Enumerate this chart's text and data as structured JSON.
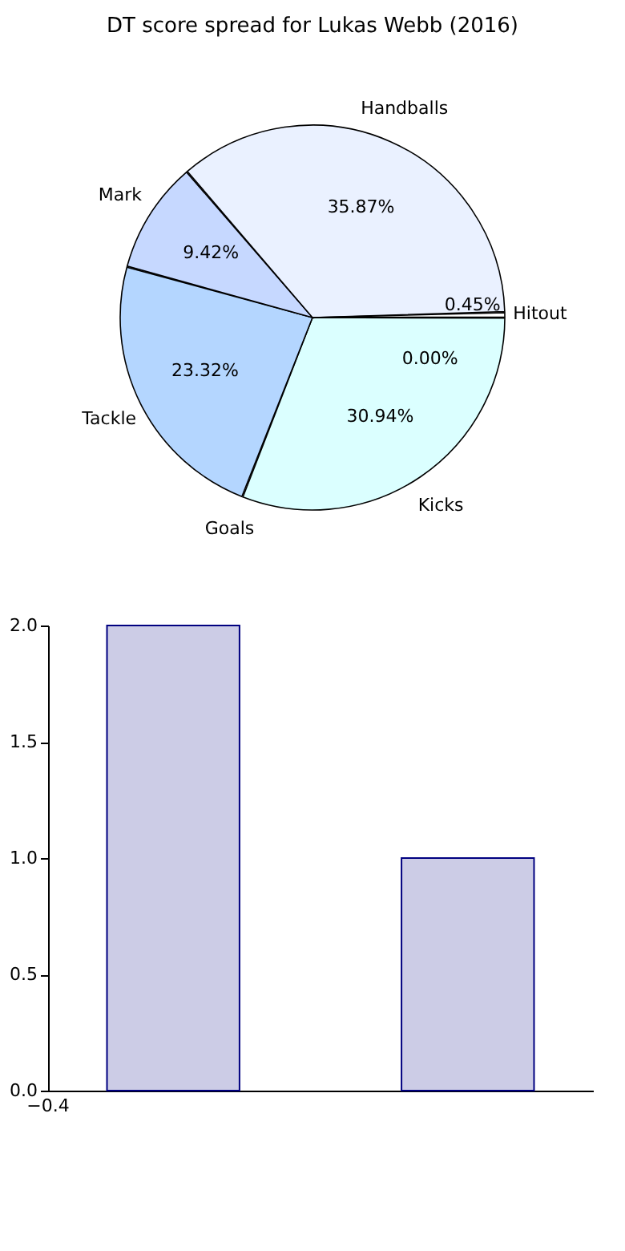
{
  "chart_data": [
    {
      "type": "pie",
      "title": "DT score spread for Lukas Webb (2016)",
      "categories": [
        "Kicks",
        "Goals",
        "Tackle",
        "Mark",
        "Handballs",
        "Hitout"
      ],
      "values": [
        30.94,
        0.0,
        23.32,
        9.42,
        35.87,
        0.45
      ],
      "value_labels": [
        "30.94%",
        "0.00%",
        "23.32%",
        "9.42%",
        "35.87%",
        "0.45%"
      ],
      "colors": [
        "#dbffff",
        "#b0e0e6",
        "#b4d6ff",
        "#c6d8ff",
        "#eaf1ff",
        "#ffffff"
      ]
    },
    {
      "type": "bar",
      "categories": [
        null,
        null
      ],
      "values": [
        2.0,
        1.0
      ],
      "color": "#cccce6",
      "ylim": [
        0,
        2
      ],
      "yticks": [
        {
          "value": 0,
          "label": "0.0"
        },
        {
          "value": 0.5,
          "label": "0.5"
        },
        {
          "value": 1,
          "label": "1.0"
        },
        {
          "value": 1.5,
          "label": "1.5"
        },
        {
          "value": 2,
          "label": "2.0"
        }
      ],
      "annotations": [
        "−0.4"
      ],
      "grid": false
    }
  ]
}
